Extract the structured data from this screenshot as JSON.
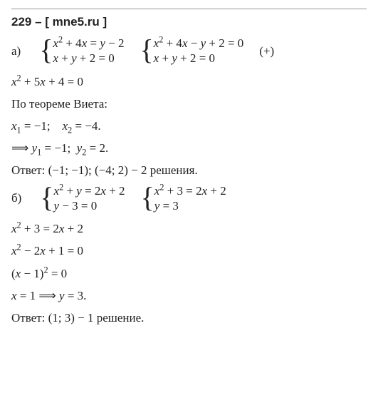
{
  "title": "229 – [ mne5.ru ]",
  "a": {
    "label": "а)",
    "sys1": {
      "eq1": "x² + 4x = y − 2",
      "eq2": "x + y + 2 = 0"
    },
    "sys2": {
      "eq1": "x² + 4x − y + 2 = 0",
      "eq2": "x + y + 2 = 0"
    },
    "op": "(+)",
    "l1": "x² + 5x + 4 = 0",
    "l2": "По теореме Виета:",
    "l3a": "x₁ = −1;",
    "l3b": "x₂ = −4.",
    "l4a": "⟹ y₁ = −1;",
    "l4b": "y₂ = 2.",
    "ans": "Ответ: (−1; −1);   (−4; 2) − 2 решения."
  },
  "b": {
    "label": "б)",
    "sys1": {
      "eq1": "x² + y = 2x + 2",
      "eq2": "y − 3 = 0"
    },
    "sys2": {
      "eq1": "x² + 3 = 2x + 2",
      "eq2": "y = 3"
    },
    "l1": "x² + 3 = 2x + 2",
    "l2": "x² − 2x + 1 = 0",
    "l3": "(x − 1)² = 0",
    "l4": "x = 1 ⟹ y = 3.",
    "ans": "Ответ: (1; 3) − 1 решение."
  }
}
